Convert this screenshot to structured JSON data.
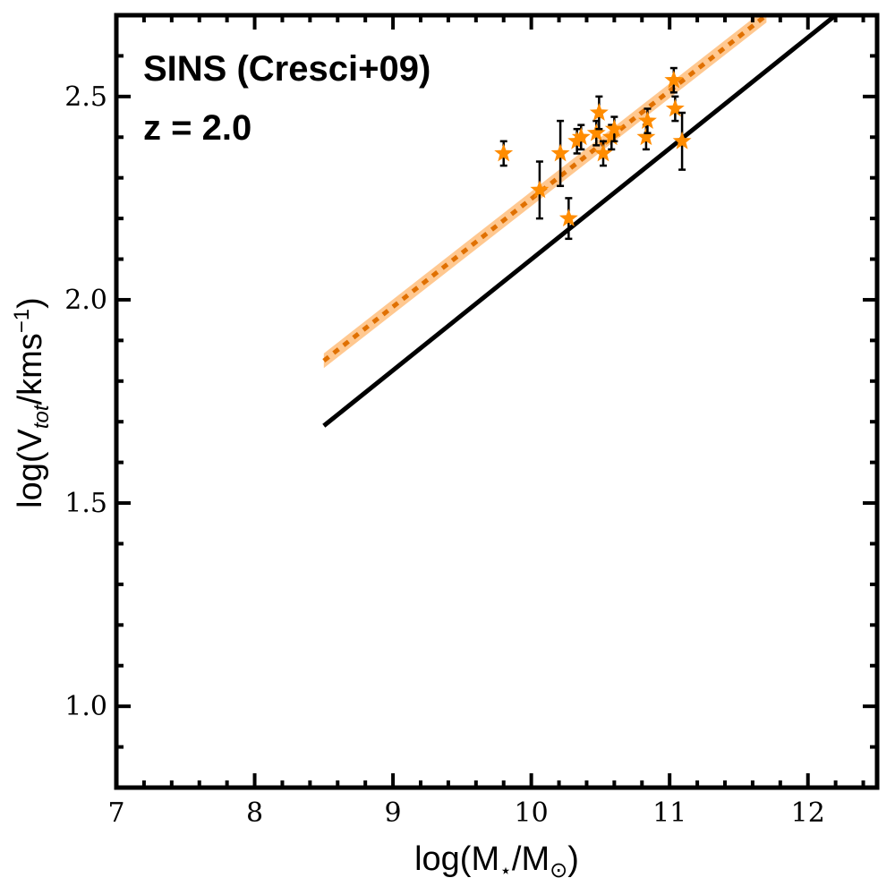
{
  "chart_data": {
    "type": "scatter",
    "annotations": {
      "survey": "SINS (Cresci+09)",
      "redshift": "z = 2.0"
    },
    "xlabel": {
      "prefix": "log(M",
      "sub1": "⋆",
      "mid": "/M",
      "sub2": "⊙",
      "suffix": ")"
    },
    "ylabel": {
      "prefix": "log(V",
      "sub": "tot",
      "mid": "/kms",
      "sup": "−1",
      "suffix": ")"
    },
    "xlim": [
      7,
      12.5
    ],
    "ylim": [
      0.8,
      2.7
    ],
    "xticks": [
      7,
      8,
      9,
      10,
      11,
      12
    ],
    "xtick_labels": [
      "7",
      "8",
      "9",
      "10",
      "11",
      "12"
    ],
    "yticks": [
      1.0,
      1.5,
      2.0,
      2.5
    ],
    "ytick_labels": [
      "1.0",
      "1.5",
      "2.0",
      "2.5"
    ],
    "xminor_step": 0.2,
    "yminor_step": 0.1,
    "colors": {
      "points": "#ff8c00",
      "errorbar": "#000000",
      "fit_line": "#e07000",
      "fit_band": "#ffc890",
      "reference_line": "#000000"
    },
    "fit": {
      "x": [
        8.5,
        11.7
      ],
      "y": [
        1.85,
        2.7
      ],
      "band_halfwidth": 0.018
    },
    "reference_line": {
      "x": [
        8.5,
        12.2
      ],
      "y": [
        1.69,
        2.7
      ]
    },
    "series": [
      {
        "name": "SINS (Cresci+09)",
        "x": [
          9.8,
          10.06,
          10.21,
          10.27,
          10.33,
          10.36,
          10.47,
          10.49,
          10.52,
          10.58,
          10.6,
          10.83,
          10.84,
          11.03,
          11.04,
          11.09
        ],
        "y": [
          2.36,
          2.27,
          2.36,
          2.2,
          2.39,
          2.4,
          2.41,
          2.46,
          2.36,
          2.4,
          2.42,
          2.4,
          2.44,
          2.54,
          2.47,
          2.39
        ],
        "err": [
          0.03,
          0.07,
          0.08,
          0.05,
          0.03,
          0.03,
          0.03,
          0.04,
          0.03,
          0.03,
          0.03,
          0.03,
          0.03,
          0.03,
          0.03,
          0.07
        ]
      }
    ]
  }
}
